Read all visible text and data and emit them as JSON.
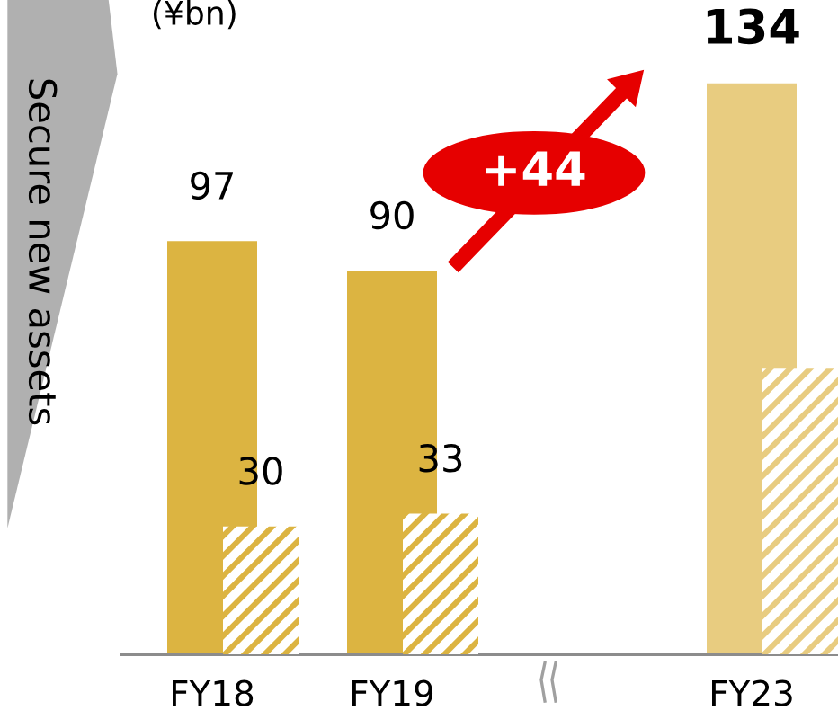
{
  "chart_data": {
    "type": "bar",
    "ylabel": "(¥bn)",
    "categories": [
      "FY18",
      "FY19",
      null,
      "FY23"
    ],
    "series": [
      {
        "colors": [
          "#dcb441",
          "#dcb441",
          null,
          "#e8cc80"
        ],
        "values": [
          97,
          90,
          null,
          134
        ],
        "value_labels": [
          "97",
          "90",
          null,
          "134"
        ]
      },
      {
        "colors": [
          "#dcb441",
          "#dcb441",
          null,
          "#e8cc80"
        ],
        "values": [
          30,
          33,
          null,
          67
        ],
        "value_labels": [
          "30",
          "33",
          null,
          null
        ]
      }
    ],
    "annotations": [
      "Secure new assets",
      "+44"
    ],
    "grid": false,
    "legend": false
  }
}
